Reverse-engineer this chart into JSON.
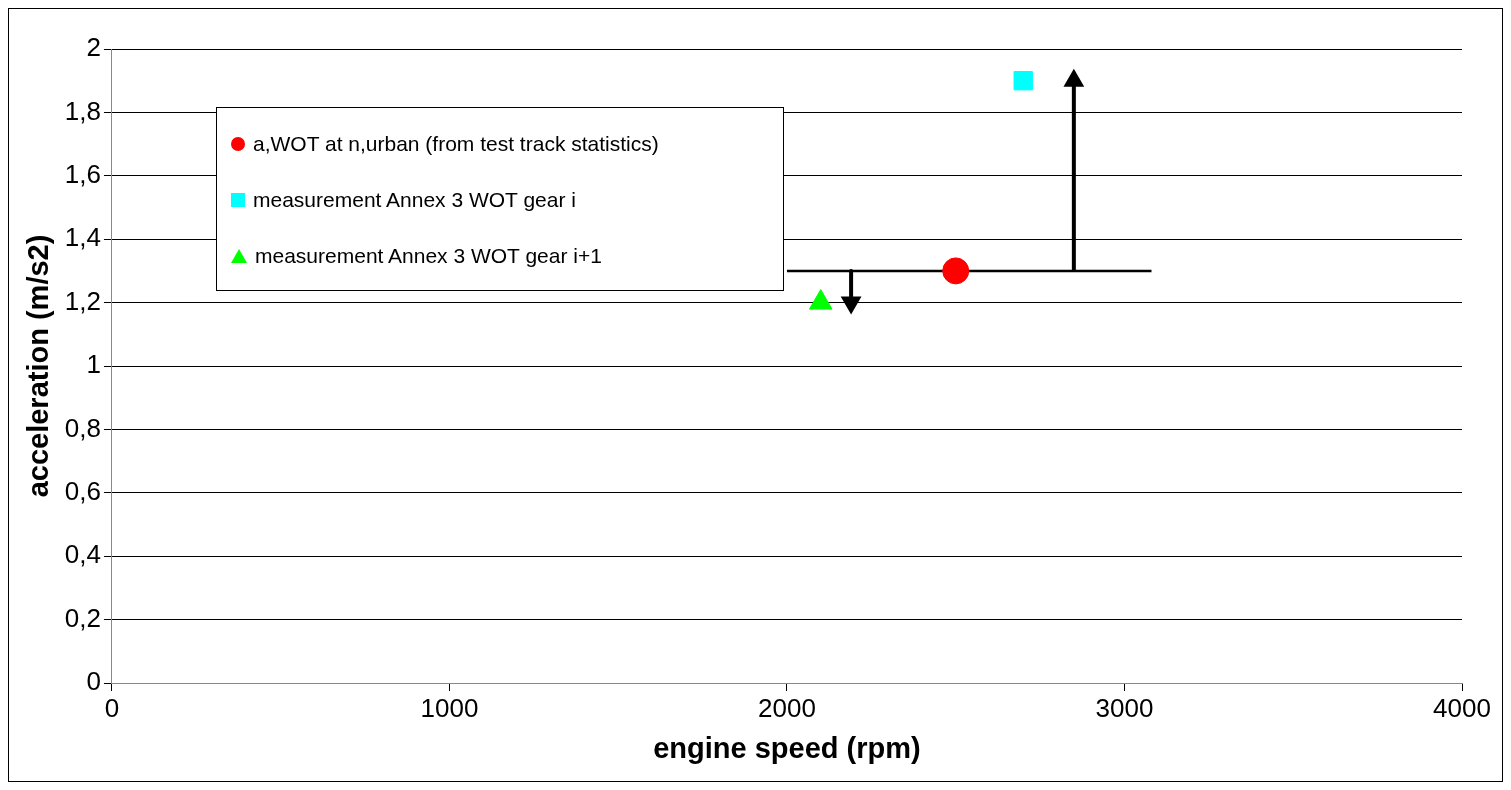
{
  "chart_data": {
    "type": "scatter",
    "xlabel": "engine speed (rpm)",
    "ylabel": "acceleration (m/s2)",
    "xlim": [
      0,
      4000
    ],
    "xticks": [
      0,
      1000,
      2000,
      3000,
      4000
    ],
    "ylim": [
      0,
      2
    ],
    "yticks": [
      0,
      {
        "value": 0.2,
        "label": "0,2"
      },
      {
        "value": 0.4,
        "label": "0,4"
      },
      {
        "value": 0.6,
        "label": "0,6"
      },
      {
        "value": 0.8,
        "label": "0,8"
      },
      1,
      {
        "value": 1.2,
        "label": "1,2"
      },
      {
        "value": 1.4,
        "label": "1,4"
      },
      {
        "value": 1.6,
        "label": "1,6"
      },
      {
        "value": 1.8,
        "label": "1,8"
      },
      2
    ],
    "grid": "y",
    "legend": "top left",
    "series": [
      {
        "name": "a,WOT  at n,urban (from test track statistics)",
        "color": "#ff0000",
        "marker": "circle",
        "x": [
          2500
        ],
        "values": [
          1.3
        ]
      },
      {
        "name": "measurement Annex 3 WOT gear i",
        "color": "#00ffff",
        "marker": "square",
        "x": [
          2700
        ],
        "values": [
          1.9
        ]
      },
      {
        "name": "measurement Annex 3 WOT gear i+1",
        "color": "#00ff00",
        "marker": "triangle",
        "x": [
          2100
        ],
        "values": [
          1.2
        ]
      },
      {
        "type": "line",
        "color": "#000000",
        "marker": "none",
        "line_style": "solid",
        "x": [
          2000,
          3080
        ],
        "values": [
          1.3,
          1.3
        ]
      },
      {
        "type": "line",
        "color": "#000000",
        "marker": "triangle",
        "line_style": "solid",
        "x": [
          2850,
          2850
        ],
        "values": [
          1.3,
          1.9
        ]
      },
      {
        "type": "line",
        "color": "#000000",
        "marker": "triangle",
        "line_style": "solid",
        "x": [
          2190,
          2190
        ],
        "values": [
          1.3,
          1.2
        ]
      }
    ]
  }
}
